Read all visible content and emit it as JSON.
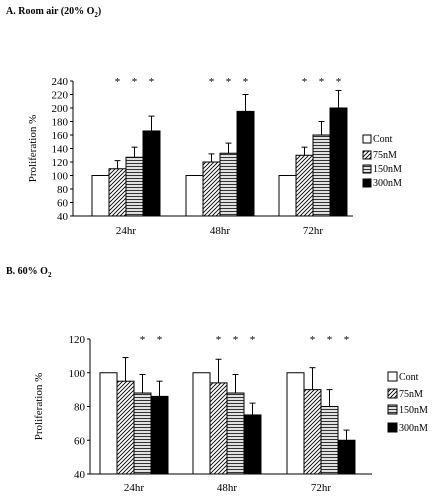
{
  "panel_a": {
    "title_prefix": "A. Room air (20% O",
    "title_sub": "2",
    "title_suffix": ")"
  },
  "panel_b": {
    "title_prefix": "B. 60% O",
    "title_sub": "2",
    "title_suffix": ""
  },
  "chart_data": [
    {
      "type": "bar",
      "title": "A. Room air (20% O2)",
      "categories": [
        "24hr",
        "48hr",
        "72hr"
      ],
      "ylabel": "Proliferation %",
      "ylim": [
        40,
        240
      ],
      "yticks": [
        40,
        60,
        80,
        100,
        120,
        140,
        160,
        180,
        200,
        220,
        240
      ],
      "grid": false,
      "legend_position": "right",
      "series": [
        {
          "name": "Cont",
          "pattern": "white",
          "values": [
            100,
            100,
            100
          ],
          "errors": [
            0,
            0,
            0
          ],
          "significant": [
            false,
            false,
            false
          ]
        },
        {
          "name": "75nM",
          "pattern": "diagonal",
          "values": [
            110,
            120,
            130
          ],
          "errors": [
            12,
            12,
            12
          ],
          "significant": [
            true,
            true,
            true
          ]
        },
        {
          "name": "150nM",
          "pattern": "horizontal",
          "values": [
            127,
            133,
            160
          ],
          "errors": [
            15,
            15,
            20
          ],
          "significant": [
            true,
            true,
            true
          ]
        },
        {
          "name": "300nM",
          "pattern": "black",
          "values": [
            166,
            195,
            200
          ],
          "errors": [
            22,
            25,
            26
          ],
          "significant": [
            true,
            true,
            true
          ]
        }
      ]
    },
    {
      "type": "bar",
      "title": "B. 60% O2",
      "categories": [
        "24hr",
        "48hr",
        "72hr"
      ],
      "ylabel": "Proliferation %",
      "ylim": [
        40,
        120
      ],
      "yticks": [
        40,
        60,
        80,
        100,
        120
      ],
      "grid": false,
      "legend_position": "right",
      "series": [
        {
          "name": "Cont",
          "pattern": "white",
          "values": [
            100,
            100,
            100
          ],
          "errors": [
            0,
            0,
            0
          ],
          "significant": [
            false,
            false,
            false
          ]
        },
        {
          "name": "75nM",
          "pattern": "diagonal",
          "values": [
            95,
            94,
            90
          ],
          "errors": [
            14,
            14,
            13
          ],
          "significant": [
            false,
            true,
            true
          ]
        },
        {
          "name": "150nM",
          "pattern": "horizontal",
          "values": [
            88,
            88,
            80
          ],
          "errors": [
            11,
            11,
            10
          ],
          "significant": [
            true,
            true,
            true
          ]
        },
        {
          "name": "300nM",
          "pattern": "black",
          "values": [
            86,
            75,
            60
          ],
          "errors": [
            9,
            7,
            6
          ],
          "significant": [
            true,
            true,
            true
          ]
        }
      ]
    }
  ]
}
